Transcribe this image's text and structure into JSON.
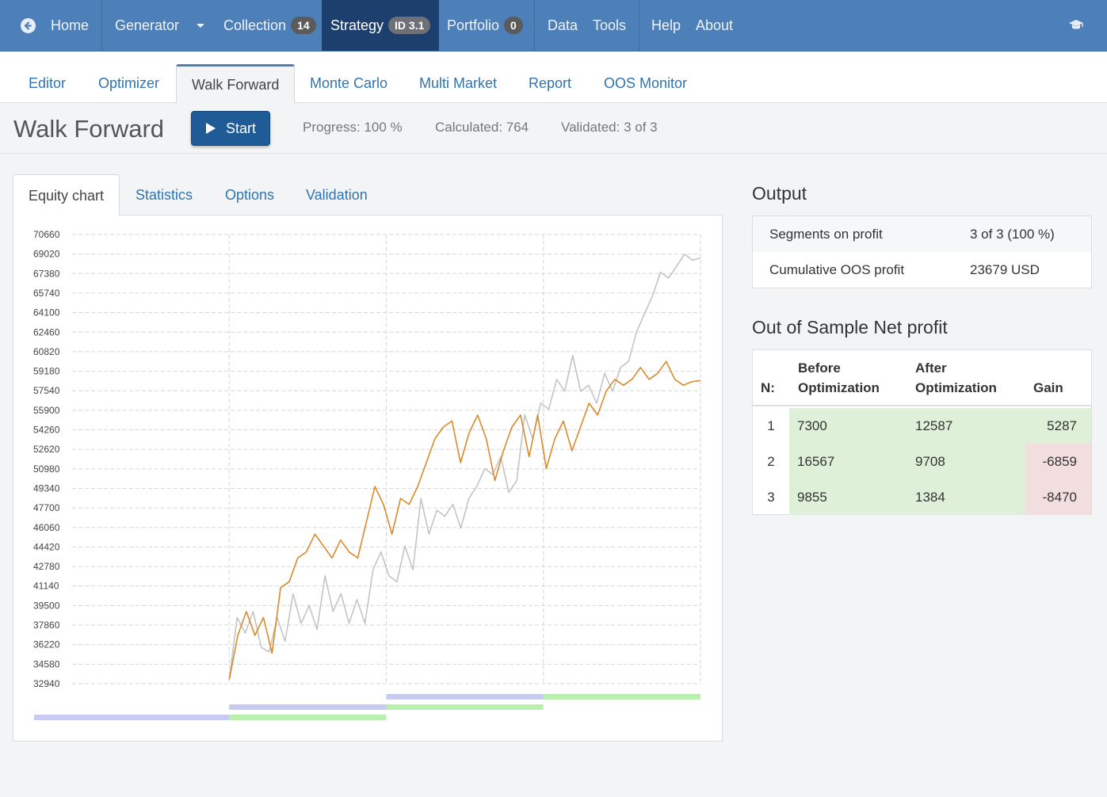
{
  "navbar": {
    "home": "Home",
    "generator": "Generator",
    "collection": "Collection",
    "collection_count": "14",
    "strategy": "Strategy",
    "strategy_id": "ID 3.1",
    "portfolio": "Portfolio",
    "portfolio_count": "0",
    "data": "Data",
    "tools": "Tools",
    "help": "Help",
    "about": "About",
    "icons": [
      "arrow-circle-left-icon",
      "caret-down-icon",
      "graduation-cap-icon"
    ]
  },
  "subtabs": [
    "Editor",
    "Optimizer",
    "Walk Forward",
    "Monte Carlo",
    "Multi Market",
    "Report",
    "OOS Monitor"
  ],
  "toolbar": {
    "title": "Walk Forward",
    "start_label": "Start",
    "progress": "Progress: 100 %",
    "calculated": "Calculated: 764",
    "validated": "Validated: 3 of 3"
  },
  "inner_tabs": [
    "Equity chart",
    "Statistics",
    "Options",
    "Validation"
  ],
  "output": {
    "title": "Output",
    "rows": [
      {
        "label": "Segments on profit",
        "value": "3 of 3 (100 %)"
      },
      {
        "label": "Cumulative OOS profit",
        "value": "23679 USD"
      }
    ]
  },
  "oos": {
    "title": "Out of Sample Net profit",
    "headers": {
      "n": "N:",
      "before_1": "Before",
      "before_2": "Optimization",
      "after_1": "After",
      "after_2": "Optimization",
      "gain": "Gain"
    },
    "rows": [
      {
        "n": "1",
        "before": "7300",
        "after": "12587",
        "gain": "5287",
        "gain_status": "positive"
      },
      {
        "n": "2",
        "before": "16567",
        "after": "9708",
        "gain": "-6859",
        "gain_status": "negative"
      },
      {
        "n": "3",
        "before": "9855",
        "after": "1384",
        "gain": "-8470",
        "gain_status": "negative"
      }
    ]
  },
  "colors": {
    "navbar": "#4d7fb8",
    "navbar_active": "#1d3f6e",
    "start_button": "#1f5b96",
    "link": "#2f74b0",
    "optimized_series": "#d98a2b",
    "original_series": "#c4c4c4",
    "in_sample_bar": "#c7cbef",
    "out_of_sample_bar": "#b9f0b0",
    "gain_positive": "#dff0d8",
    "gain_negative": "#f2dede"
  },
  "chart_data": {
    "type": "line",
    "y_ticks": [
      "70660",
      "69020",
      "67380",
      "65740",
      "64100",
      "62460",
      "60820",
      "59180",
      "57540",
      "55900",
      "54260",
      "52620",
      "50980",
      "49340",
      "47700",
      "46060",
      "44420",
      "42780",
      "41140",
      "39500",
      "37860",
      "36220",
      "34580",
      "32940"
    ],
    "ylim": [
      32940,
      70660
    ],
    "x_segments": 4,
    "series": [
      {
        "color": "#c4c4c4",
        "segment_start": 1,
        "values": [
          33300,
          38500,
          37200,
          39000,
          36000,
          35600,
          38500,
          36500,
          40500,
          38000,
          39500,
          37500,
          42000,
          39000,
          40500,
          38000,
          40000,
          38000,
          42500,
          44000,
          42000,
          41500,
          44500,
          42500,
          48500,
          45500,
          47500,
          47000,
          48000,
          46000,
          48500,
          49500,
          51000,
          50500,
          52000,
          49000,
          50000,
          55500,
          53500,
          56500,
          56000,
          58500,
          57500,
          60500,
          57500,
          58000,
          56500,
          59000,
          57500,
          59500,
          60000,
          62500,
          64000,
          65500,
          67500,
          67000,
          68000,
          69000,
          68500,
          68700
        ]
      },
      {
        "color": "#d98a2b",
        "segment_start": 1,
        "values": [
          33300,
          37000,
          39000,
          37000,
          38500,
          35500,
          41000,
          41500,
          43500,
          44000,
          45500,
          44500,
          43500,
          45000,
          44000,
          43500,
          46500,
          49500,
          48000,
          45500,
          48500,
          48000,
          49500,
          51500,
          53500,
          54500,
          55000,
          51500,
          54000,
          55500,
          53500,
          50000,
          52500,
          54500,
          55500,
          52000,
          55500,
          51000,
          53500,
          55000,
          52500,
          54500,
          56500,
          55500,
          57500,
          58500,
          58000,
          58500,
          59500,
          58500,
          59000,
          60000,
          58500,
          58000,
          58300,
          58400
        ]
      }
    ],
    "segment_bars": [
      {
        "row": 0,
        "in_sample": [
          0,
          1
        ]
      },
      {
        "row": 1,
        "in_sample": [
          1,
          2
        ],
        "out_of_sample": [
          1,
          2
        ]
      },
      {
        "row": 2,
        "in_sample": [
          2,
          3
        ],
        "out_of_sample": [
          2,
          3
        ]
      },
      {
        "row": 3,
        "in_sample": [
          2,
          3
        ],
        "out_of_sample": [
          3,
          4
        ]
      }
    ]
  }
}
